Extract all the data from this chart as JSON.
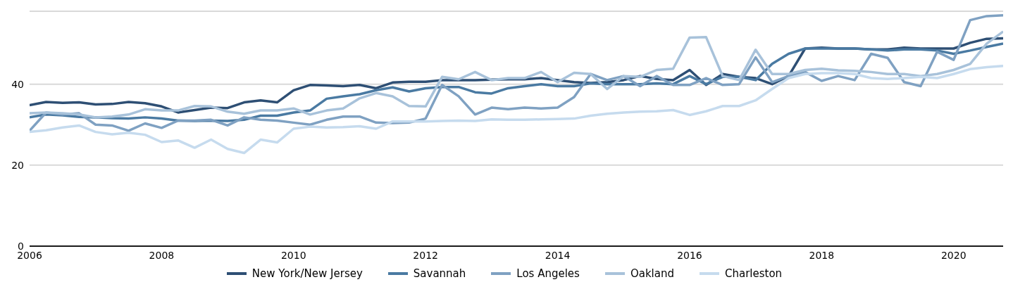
{
  "chart_data": {
    "type": "line",
    "x": [
      2006,
      2006.25,
      2006.5,
      2006.75,
      2007,
      2007.25,
      2007.5,
      2007.75,
      2008,
      2008.25,
      2008.5,
      2008.75,
      2009,
      2009.25,
      2009.5,
      2009.75,
      2010,
      2010.25,
      2010.5,
      2010.75,
      2011,
      2011.25,
      2011.5,
      2011.75,
      2012,
      2012.25,
      2012.5,
      2012.75,
      2013,
      2013.25,
      2013.5,
      2013.75,
      2014,
      2014.25,
      2014.5,
      2014.75,
      2015,
      2015.25,
      2015.5,
      2015.75,
      2016,
      2016.25,
      2016.5,
      2016.75,
      2017,
      2017.25,
      2017.5,
      2017.75,
      2018,
      2018.25,
      2018.5,
      2018.75,
      2019,
      2019.25,
      2019.5,
      2019.75,
      2020,
      2020.25,
      2020.5,
      2020.75
    ],
    "series": [
      {
        "name": "New York/New Jersey",
        "color": "#2e4f74",
        "values": [
          34.8,
          35.6,
          35.4,
          35.5,
          35.0,
          35.1,
          35.6,
          35.3,
          34.5,
          33.0,
          33.6,
          34.2,
          34.1,
          35.5,
          36.0,
          35.5,
          38.5,
          39.8,
          39.7,
          39.5,
          39.8,
          39.0,
          40.4,
          40.6,
          40.6,
          41.0,
          41.0,
          41.0,
          41.1,
          41.2,
          41.2,
          41.5,
          41.0,
          40.5,
          40.3,
          40.5,
          41.0,
          42.0,
          41.3,
          41.0,
          43.5,
          39.8,
          42.5,
          41.8,
          41.5,
          40.0,
          42.0,
          48.8,
          49.0,
          48.8,
          48.8,
          48.6,
          48.6,
          49.0,
          48.8,
          48.8,
          48.8,
          50.2,
          51.2,
          51.3
        ]
      },
      {
        "name": "Savannah",
        "color": "#4a7aa2",
        "values": [
          31.8,
          32.5,
          32.3,
          31.9,
          31.8,
          31.6,
          31.5,
          31.8,
          31.5,
          31.0,
          30.9,
          31.0,
          30.9,
          31.2,
          32.2,
          32.2,
          33.0,
          33.5,
          36.4,
          37.0,
          37.5,
          38.5,
          39.2,
          38.2,
          39.0,
          39.3,
          39.3,
          38.0,
          37.7,
          39.0,
          39.5,
          40.0,
          39.5,
          39.5,
          40.2,
          40.0,
          40.0,
          40.0,
          40.2,
          40.0,
          42.0,
          40.0,
          41.8,
          41.8,
          41.0,
          45.0,
          47.5,
          48.8,
          48.8,
          48.8,
          48.8,
          48.6,
          48.3,
          48.6,
          48.6,
          48.3,
          47.5,
          48.3,
          49.2,
          50.0
        ]
      },
      {
        "name": "Los Angeles",
        "color": "#7fa1c2",
        "values": [
          28.5,
          33.0,
          32.5,
          32.8,
          30.0,
          29.8,
          28.5,
          30.3,
          29.2,
          31.0,
          31.0,
          31.2,
          29.8,
          31.8,
          31.2,
          31.0,
          30.5,
          30.0,
          31.2,
          32.0,
          32.0,
          30.5,
          30.4,
          30.5,
          31.5,
          39.8,
          37.0,
          32.5,
          34.2,
          33.8,
          34.2,
          34.0,
          34.2,
          36.8,
          42.5,
          41.0,
          42.0,
          39.5,
          42.0,
          39.8,
          39.8,
          41.5,
          39.8,
          40.0,
          46.6,
          40.5,
          42.0,
          43.0,
          40.8,
          42.0,
          41.0,
          47.5,
          46.5,
          40.5,
          39.5,
          48.0,
          46.0,
          55.8,
          56.8,
          57.0
        ]
      },
      {
        "name": "Oakland",
        "color": "#a8c2da",
        "values": [
          32.8,
          33.0,
          32.8,
          32.5,
          31.8,
          32.0,
          32.5,
          33.8,
          33.5,
          33.5,
          34.6,
          34.5,
          33.2,
          32.7,
          33.5,
          33.5,
          34.0,
          32.5,
          33.5,
          34.0,
          36.5,
          37.8,
          37.0,
          34.6,
          34.5,
          41.8,
          41.2,
          43.0,
          41.0,
          41.5,
          41.5,
          43.0,
          40.5,
          42.8,
          42.5,
          38.8,
          42.0,
          41.8,
          43.5,
          43.8,
          51.5,
          51.6,
          42.0,
          41.0,
          48.5,
          42.5,
          42.5,
          43.5,
          43.8,
          43.4,
          43.3,
          43.0,
          42.5,
          42.5,
          42.0,
          42.5,
          43.5,
          45.0,
          50.0,
          53.0
        ]
      },
      {
        "name": "Charleston",
        "color": "#c6dbee",
        "values": [
          28.2,
          28.6,
          29.3,
          29.8,
          28.2,
          27.6,
          28.0,
          27.5,
          25.7,
          26.1,
          24.3,
          26.3,
          24.0,
          23.0,
          26.3,
          25.6,
          29.0,
          29.5,
          29.3,
          29.4,
          29.6,
          29.0,
          30.8,
          30.8,
          30.8,
          30.9,
          31.0,
          30.9,
          31.3,
          31.2,
          31.2,
          31.3,
          31.4,
          31.5,
          32.2,
          32.7,
          33.0,
          33.2,
          33.3,
          33.6,
          32.4,
          33.3,
          34.6,
          34.6,
          36.0,
          38.8,
          41.5,
          42.5,
          42.7,
          42.7,
          42.5,
          41.5,
          41.3,
          41.5,
          41.8,
          41.5,
          42.5,
          43.7,
          44.2,
          44.5
        ]
      }
    ],
    "xlim": [
      2006,
      2020.75
    ],
    "xticks": [
      2006,
      2008,
      2010,
      2012,
      2014,
      2016,
      2018,
      2020
    ],
    "ylim": [
      0,
      58
    ],
    "yticks": [
      0,
      20,
      40
    ],
    "grid": "y",
    "legend": "bottom",
    "marker": "none",
    "line_style": "solid"
  }
}
